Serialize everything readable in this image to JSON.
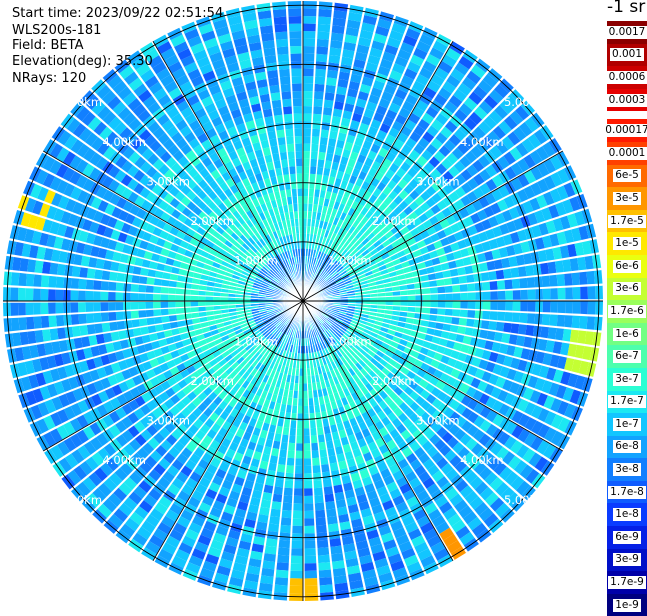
{
  "header": {
    "start_time": "Start time: 2023/09/22 02:51:54",
    "instrument": "WLS200s-181",
    "field": "Field: BETA",
    "elevation": "Elevation(deg): 35.30",
    "nrays": "NRays: 120"
  },
  "colorbar": {
    "title": "-1 sr",
    "upper_group": [
      {
        "label": "0.0017",
        "color": "#8b0000"
      },
      {
        "label": "0.001",
        "color": "#b00000"
      },
      {
        "label": "0.0006",
        "color": "#cc0000"
      },
      {
        "label": "0.0003",
        "color": "#e60000"
      }
    ],
    "lower_group": [
      {
        "label": "0.00017",
        "color": "#ff1a00"
      },
      {
        "label": "0.0001",
        "color": "#ff4000"
      },
      {
        "label": "6e-5",
        "color": "#ff6a00"
      },
      {
        "label": "3e-5",
        "color": "#ff9600"
      },
      {
        "label": "1.7e-5",
        "color": "#ffc000"
      },
      {
        "label": "1e-5",
        "color": "#ffe800"
      },
      {
        "label": "6e-6",
        "color": "#eaff10"
      },
      {
        "label": "3e-6",
        "color": "#c4ff33"
      },
      {
        "label": "1.7e-6",
        "color": "#9aff5c"
      },
      {
        "label": "1e-6",
        "color": "#72ff84"
      },
      {
        "label": "6e-7",
        "color": "#4dffad"
      },
      {
        "label": "3e-7",
        "color": "#2cffd4"
      },
      {
        "label": "1.7e-7",
        "color": "#1ce8f2"
      },
      {
        "label": "1e-7",
        "color": "#12c6ff"
      },
      {
        "label": "6e-8",
        "color": "#12a3ff"
      },
      {
        "label": "3e-8",
        "color": "#127fff"
      },
      {
        "label": "1.7e-8",
        "color": "#0f5cff"
      },
      {
        "label": "1e-8",
        "color": "#0a3cff"
      },
      {
        "label": "6e-9",
        "color": "#0520e6"
      },
      {
        "label": "3e-9",
        "color": "#0010c8"
      },
      {
        "label": "1.7e-9",
        "color": "#0000a8"
      },
      {
        "label": "1e-9",
        "color": "#000080"
      }
    ]
  },
  "chart_data": {
    "type": "heatmap",
    "projection": "polar PPI",
    "title": "",
    "field": "BETA",
    "units": "-1 sr",
    "n_rays": 120,
    "elevation_deg": 35.3,
    "range_rings_km": [
      1,
      2,
      3,
      4,
      5
    ],
    "ring_labels": [
      "1.00km",
      "2.00km",
      "3.00km",
      "4.00km",
      "5.00km"
    ],
    "azimuth_spokes_deg": [
      0,
      30,
      60,
      90,
      120,
      150,
      180,
      210,
      240,
      270,
      300,
      330
    ],
    "max_range_km": 5.07,
    "near_field_value": "1.7e-7 to 3e-7",
    "mid_field_value": "6e-8 to 1e-7",
    "far_field_value": "1.7e-8 to 6e-8",
    "edge_hotspots": [
      {
        "azimuth_deg": 150,
        "range_km": 4.9,
        "value": "3e-5"
      },
      {
        "azimuth_deg": 180,
        "range_km": 5.0,
        "value": "1.7e-5"
      },
      {
        "azimuth_deg": 290,
        "range_km": 4.9,
        "value": "1e-5"
      },
      {
        "azimuth_deg": 100,
        "range_km": 4.9,
        "value": "3e-6"
      }
    ]
  }
}
